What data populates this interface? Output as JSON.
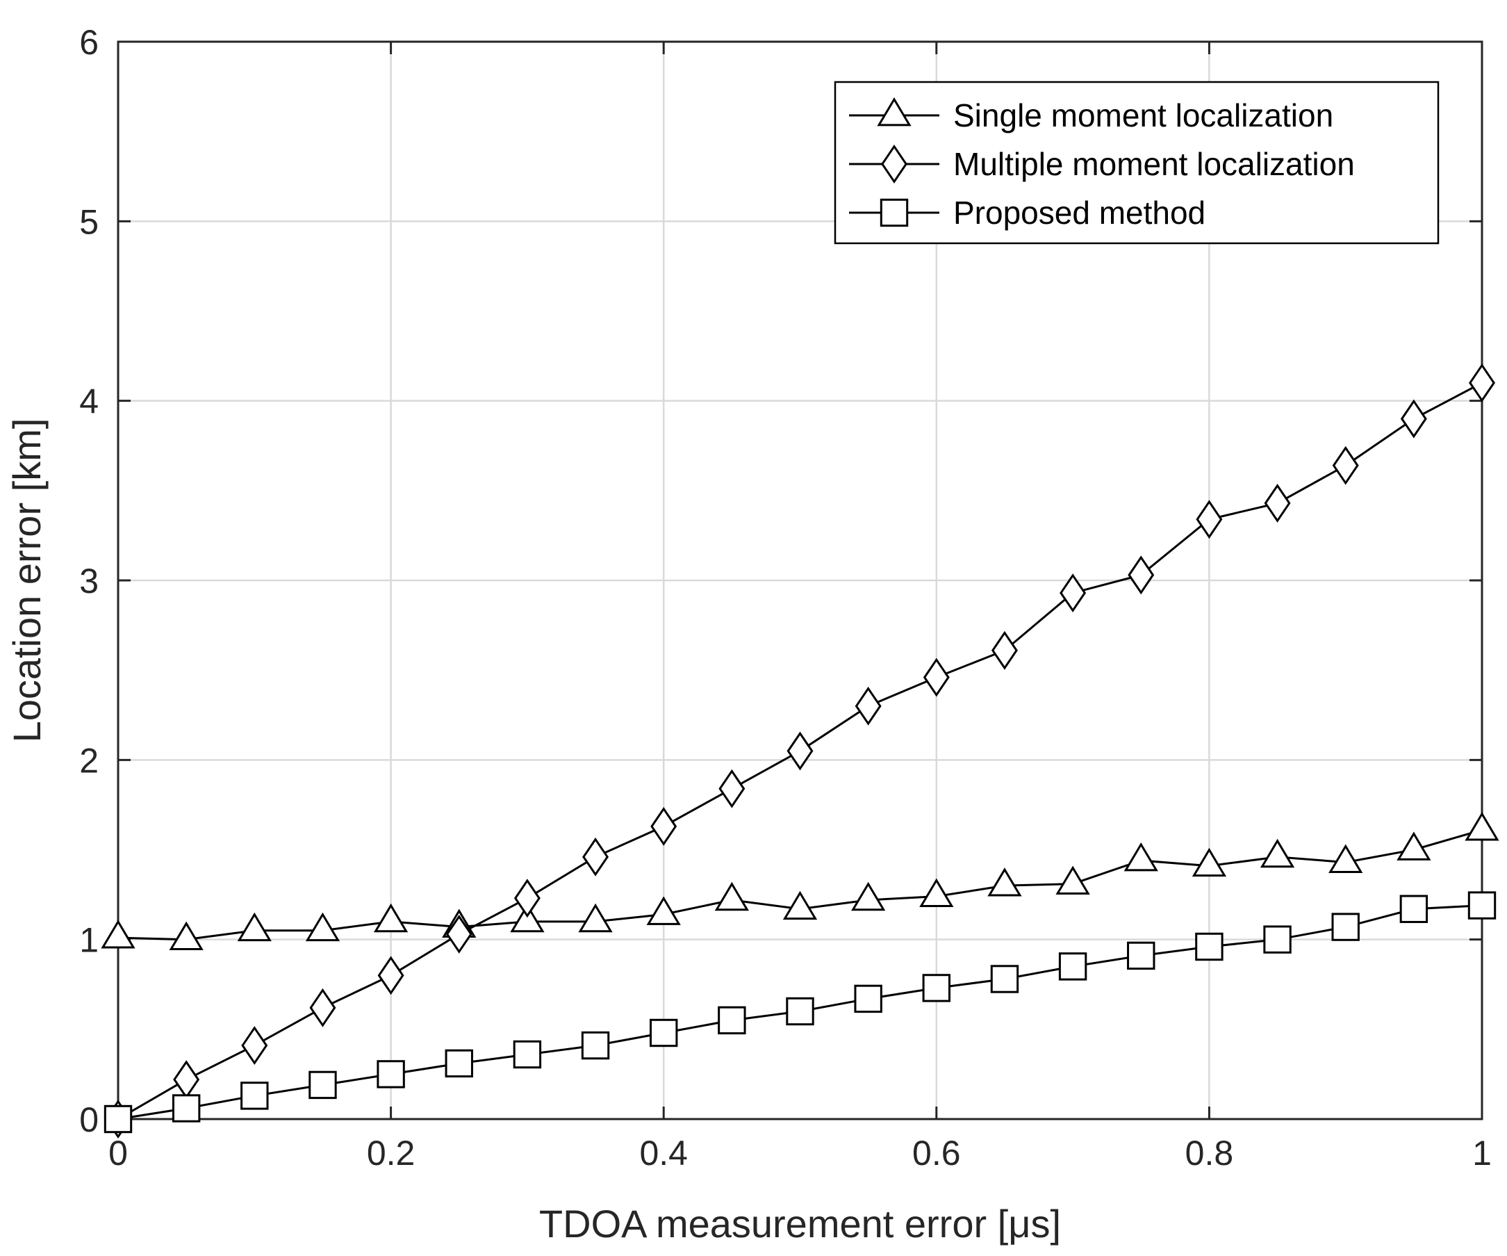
{
  "chart_data": {
    "type": "line",
    "title": "",
    "xlabel": "TDOA measurement error [μs]",
    "ylabel": "Location error [km]",
    "xlim": [
      0,
      1
    ],
    "ylim": [
      0,
      6
    ],
    "xticks": [
      0,
      0.2,
      0.4,
      0.6,
      0.8,
      1
    ],
    "xtick_labels": [
      "0",
      "0.2",
      "0.4",
      "0.6",
      "0.8",
      "1"
    ],
    "yticks": [
      0,
      1,
      2,
      3,
      4,
      5,
      6
    ],
    "ytick_labels": [
      "0",
      "1",
      "2",
      "3",
      "4",
      "5",
      "6"
    ],
    "grid": true,
    "legend_position": "top-right",
    "x": [
      0,
      0.05,
      0.1,
      0.15,
      0.2,
      0.25,
      0.3,
      0.35,
      0.4,
      0.45,
      0.5,
      0.55,
      0.6,
      0.65,
      0.7,
      0.75,
      0.8,
      0.85,
      0.9,
      0.95,
      1
    ],
    "series": [
      {
        "name": "Single moment localization",
        "marker": "triangle",
        "color": "#000000",
        "values": [
          1.01,
          1.0,
          1.05,
          1.05,
          1.1,
          1.07,
          1.1,
          1.1,
          1.14,
          1.22,
          1.17,
          1.22,
          1.24,
          1.3,
          1.31,
          1.44,
          1.41,
          1.46,
          1.43,
          1.5,
          1.61
        ]
      },
      {
        "name": "Multiple moment localization",
        "marker": "diamond",
        "color": "#000000",
        "values": [
          0.0,
          0.22,
          0.41,
          0.62,
          0.8,
          1.03,
          1.23,
          1.46,
          1.63,
          1.84,
          2.05,
          2.3,
          2.46,
          2.61,
          2.93,
          3.03,
          3.34,
          3.43,
          3.64,
          3.9,
          4.1
        ]
      },
      {
        "name": "Proposed method",
        "marker": "square",
        "color": "#000000",
        "values": [
          0.0,
          0.06,
          0.13,
          0.19,
          0.25,
          0.31,
          0.36,
          0.41,
          0.48,
          0.55,
          0.6,
          0.67,
          0.73,
          0.78,
          0.85,
          0.91,
          0.96,
          1.0,
          1.07,
          1.17,
          1.19
        ]
      }
    ]
  }
}
